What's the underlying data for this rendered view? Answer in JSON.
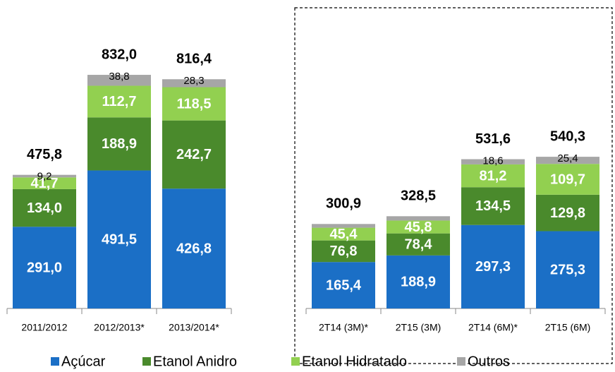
{
  "chart_data": {
    "type": "stacked-bar",
    "categories": [
      "2011/2012",
      "2012/2013*",
      "2013/2014*",
      "2T14 (3M)*",
      "2T15 (3M)",
      "2T14 (6M)*",
      "2T15 (6M)"
    ],
    "series": [
      {
        "name": "Açúcar",
        "color": "#1b6fc6",
        "values": [
          291.0,
          491.5,
          426.8,
          165.4,
          188.9,
          297.3,
          275.3
        ],
        "value_labels": [
          "291,0",
          "491,5",
          "426,8",
          "165,4",
          "188,9",
          "297,3",
          "275,3"
        ]
      },
      {
        "name": "Etanol Anidro",
        "color": "#4a8a2c",
        "values": [
          134.0,
          188.9,
          242.7,
          76.8,
          78.4,
          134.5,
          129.8
        ],
        "value_labels": [
          "134,0",
          "188,9",
          "242,7",
          "76,8",
          "78,4",
          "134,5",
          "129,8"
        ]
      },
      {
        "name": "Etanol Hidratado",
        "color": "#92d050",
        "values": [
          41.7,
          112.7,
          118.5,
          45.4,
          45.8,
          81.2,
          109.7
        ],
        "value_labels": [
          "41,7",
          "112,7",
          "118,5",
          "45,4",
          "45,8",
          "81,2",
          "109,7"
        ]
      },
      {
        "name": "Outros",
        "color": "#a6a6a6",
        "values": [
          9.2,
          38.8,
          28.3,
          13.3,
          15.4,
          18.6,
          25.4
        ],
        "value_labels": [
          "9,2",
          "38,8",
          "28,3",
          null,
          null,
          "18,6",
          "25,4"
        ]
      }
    ],
    "totals": [
      475.8,
      832.0,
      816.4,
      300.9,
      328.5,
      531.6,
      540.3
    ],
    "total_labels": [
      "475,8",
      "832,0",
      "816,4",
      "300,9",
      "328,5",
      "531,6",
      "540,3"
    ]
  }
}
